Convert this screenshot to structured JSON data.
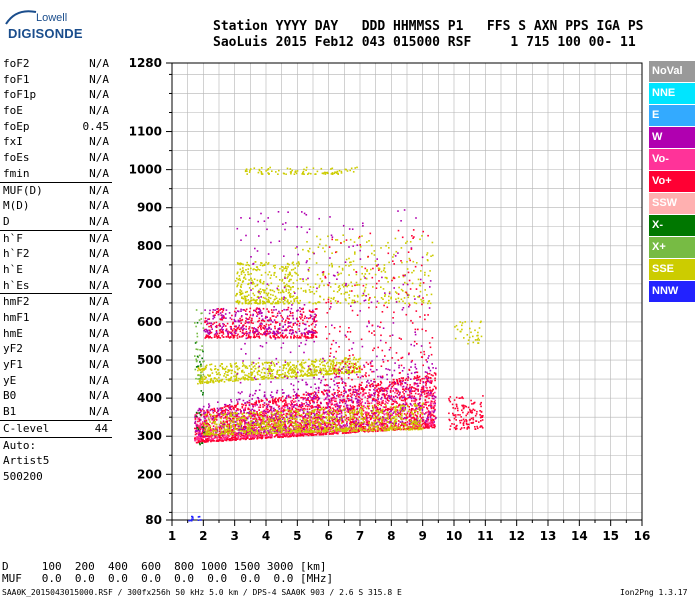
{
  "logo": {
    "brand": "Lowell",
    "product": "DIGISONDE"
  },
  "header": {
    "labels": "Station YYYY DAY   DDD HHMMSS P1   FFS S AXN PPS IGA PS",
    "values": "SaoLuis 2015 Feb12 043 015000 RSF     1 715 100 00- 11"
  },
  "params": {
    "group1": [
      {
        "name": "foF2",
        "value": "N/A"
      },
      {
        "name": "foF1",
        "value": "N/A"
      },
      {
        "name": "foF1p",
        "value": "N/A"
      },
      {
        "name": "foE",
        "value": "N/A"
      },
      {
        "name": "foEp",
        "value": "0.45"
      },
      {
        "name": "fxI",
        "value": "N/A"
      },
      {
        "name": "foEs",
        "value": "N/A"
      },
      {
        "name": "fmin",
        "value": "N/A"
      }
    ],
    "group2": [
      {
        "name": "MUF(D)",
        "value": "N/A"
      },
      {
        "name": "M(D)",
        "value": "N/A"
      },
      {
        "name": "D",
        "value": "N/A"
      }
    ],
    "group3": [
      {
        "name": "h`F",
        "value": "N/A"
      },
      {
        "name": "h`F2",
        "value": "N/A"
      },
      {
        "name": "h`E",
        "value": "N/A"
      },
      {
        "name": "h`Es",
        "value": "N/A"
      }
    ],
    "group4": [
      {
        "name": "hmF2",
        "value": "N/A"
      },
      {
        "name": "hmF1",
        "value": "N/A"
      },
      {
        "name": "hmE",
        "value": "N/A"
      },
      {
        "name": "yF2",
        "value": "N/A"
      },
      {
        "name": "yF1",
        "value": "N/A"
      },
      {
        "name": "yE",
        "value": "N/A"
      },
      {
        "name": "B0",
        "value": "N/A"
      },
      {
        "name": "B1",
        "value": "N/A"
      }
    ],
    "clevel": {
      "name": "C-level",
      "value": "44"
    },
    "auto": [
      "Auto:",
      "Artist5",
      "500200"
    ]
  },
  "legend": [
    {
      "label": "NoVal",
      "color": "#999999"
    },
    {
      "label": "NNE",
      "color": "#00e5ff"
    },
    {
      "label": "E",
      "color": "#33aaff"
    },
    {
      "label": "W",
      "color": "#b000b0"
    },
    {
      "label": "Vo-",
      "color": "#ff3399"
    },
    {
      "label": "Vo+",
      "color": "#ff0033"
    },
    {
      "label": "SSW",
      "color": "#ffb0b0"
    },
    {
      "label": "X-",
      "color": "#007700"
    },
    {
      "label": "X+",
      "color": "#77bb44"
    },
    {
      "label": "SSE",
      "color": "#cccc00"
    },
    {
      "label": "NNW",
      "color": "#2222ff"
    }
  ],
  "chart_data": {
    "type": "scatter",
    "title": "",
    "xlabel": "",
    "ylabel": "",
    "xlim": [
      1,
      16
    ],
    "ylim": [
      80,
      1280
    ],
    "x_ticks": [
      1,
      2,
      3,
      4,
      5,
      6,
      7,
      8,
      9,
      10,
      11,
      12,
      13,
      14,
      15,
      16
    ],
    "y_ticks": [
      80,
      200,
      300,
      400,
      500,
      600,
      700,
      800,
      900,
      1000,
      1100,
      1280
    ],
    "grid": true,
    "x_units": "MHz",
    "y_units": "km",
    "clusters": [
      {
        "series": "Vo+",
        "color": "#ff0033",
        "f": [
          1.7,
          9.4
        ],
        "h0": [
          285,
          325
        ],
        "h1": [
          370,
          470
        ],
        "n": 2600
      },
      {
        "series": "Vo-",
        "color": "#ff3399",
        "f": [
          1.7,
          9.4
        ],
        "h0": [
          290,
          330
        ],
        "h1": [
          360,
          450
        ],
        "n": 500
      },
      {
        "series": "W",
        "color": "#b000b0",
        "f": [
          1.7,
          9.4
        ],
        "h0": [
          300,
          340
        ],
        "h1": [
          380,
          520
        ],
        "n": 700
      },
      {
        "series": "SSE",
        "color": "#cccc00",
        "f": [
          2.0,
          9.0
        ],
        "h0": [
          305,
          320
        ],
        "h1": [
          360,
          390
        ],
        "n": 900
      },
      {
        "series": "SSE",
        "color": "#cccc00",
        "f": [
          1.8,
          7.0
        ],
        "h0": [
          440,
          470
        ],
        "h1": [
          490,
          510
        ],
        "n": 650
      },
      {
        "series": "SSE",
        "color": "#cccc00",
        "f": [
          3.0,
          5.0
        ],
        "h0": [
          650,
          650
        ],
        "h1": [
          760,
          760
        ],
        "n": 350
      },
      {
        "series": "SSE",
        "color": "#cccc00",
        "f": [
          4.8,
          9.3
        ],
        "h0": [
          650,
          650
        ],
        "h1": [
          830,
          830
        ],
        "n": 300
      },
      {
        "series": "SSE",
        "color": "#cccc00",
        "f": [
          3.3,
          6.9
        ],
        "h0": [
          990,
          990
        ],
        "h1": [
          1008,
          1008
        ],
        "n": 90
      },
      {
        "series": "Vo+",
        "color": "#ff0033",
        "f": [
          2.0,
          5.6
        ],
        "h0": [
          560,
          560
        ],
        "h1": [
          640,
          640
        ],
        "n": 450
      },
      {
        "series": "W",
        "color": "#b000b0",
        "f": [
          2.0,
          5.6
        ],
        "h0": [
          570,
          570
        ],
        "h1": [
          640,
          640
        ],
        "n": 200
      },
      {
        "series": "W",
        "color": "#b000b0",
        "f": [
          3.0,
          9.3
        ],
        "h0": [
          400,
          400
        ],
        "h1": [
          900,
          900
        ],
        "n": 300
      },
      {
        "series": "Vo+",
        "color": "#ff0033",
        "f": [
          5.8,
          9.3
        ],
        "h0": [
          420,
          420
        ],
        "h1": [
          850,
          850
        ],
        "n": 250
      },
      {
        "series": "X+",
        "color": "#77bb44",
        "f": [
          1.7,
          2.0
        ],
        "h0": [
          450,
          450
        ],
        "h1": [
          640,
          640
        ],
        "n": 40
      },
      {
        "series": "X-",
        "color": "#007700",
        "f": [
          1.7,
          2.0
        ],
        "h0": [
          280,
          280
        ],
        "h1": [
          600,
          600
        ],
        "n": 25
      },
      {
        "series": "Vo+",
        "color": "#ff0033",
        "f": [
          9.8,
          10.9
        ],
        "h0": [
          320,
          320
        ],
        "h1": [
          410,
          410
        ],
        "n": 130
      },
      {
        "series": "SSE",
        "color": "#cccc00",
        "f": [
          10.0,
          11.0
        ],
        "h0": [
          545,
          545
        ],
        "h1": [
          605,
          605
        ],
        "n": 35
      },
      {
        "series": "NNW",
        "color": "#2222ff",
        "f": [
          1.5,
          1.9
        ],
        "h0": [
          80,
          80
        ],
        "h1": [
          95,
          95
        ],
        "n": 12
      }
    ]
  },
  "footer": {
    "d_row": "D     100  200  400  600  800 1000 1500 3000 [km]",
    "muf_row": "MUF   0.0  0.0  0.0  0.0  0.0  0.0  0.0  0.0 [MHz]",
    "file": "SAA0K_2015043015000.RSF / 300fx256h 50 kHz 5.0 km / DPS-4 SAA0K 903 / 2.6 S 315.8 E",
    "version": "Ion2Png 1.3.17"
  }
}
